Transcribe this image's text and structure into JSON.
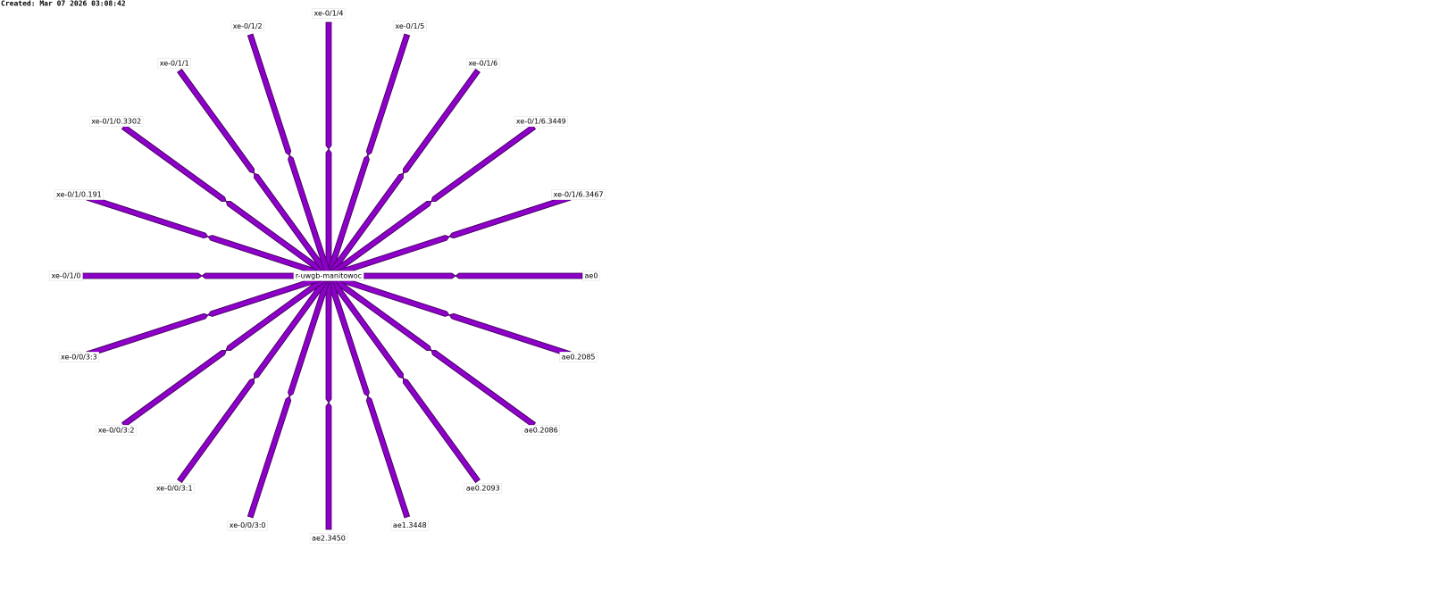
{
  "header": {
    "created": "Created: Mar 07 2026 03:08:42"
  },
  "center": {
    "label": "r-uwgb-manitowoc"
  },
  "nodes": [
    {
      "label": "xe-0/1/4"
    },
    {
      "label": "xe-0/1/5"
    },
    {
      "label": "xe-0/1/6"
    },
    {
      "label": "xe-0/1/6.3449"
    },
    {
      "label": "xe-0/1/6.3467"
    },
    {
      "label": "ae0"
    },
    {
      "label": "ae0.2085"
    },
    {
      "label": "ae0.2086"
    },
    {
      "label": "ae0.2093"
    },
    {
      "label": "ae1.3448"
    },
    {
      "label": "ae2.3450"
    },
    {
      "label": "xe-0/0/3:0"
    },
    {
      "label": "xe-0/0/3:1"
    },
    {
      "label": "xe-0/0/3:2"
    },
    {
      "label": "xe-0/0/3:3"
    },
    {
      "label": "xe-0/1/0"
    },
    {
      "label": "xe-0/1/0.191"
    },
    {
      "label": "xe-0/1/0.3302"
    },
    {
      "label": "xe-0/1/1"
    },
    {
      "label": "xe-0/1/2"
    }
  ]
}
